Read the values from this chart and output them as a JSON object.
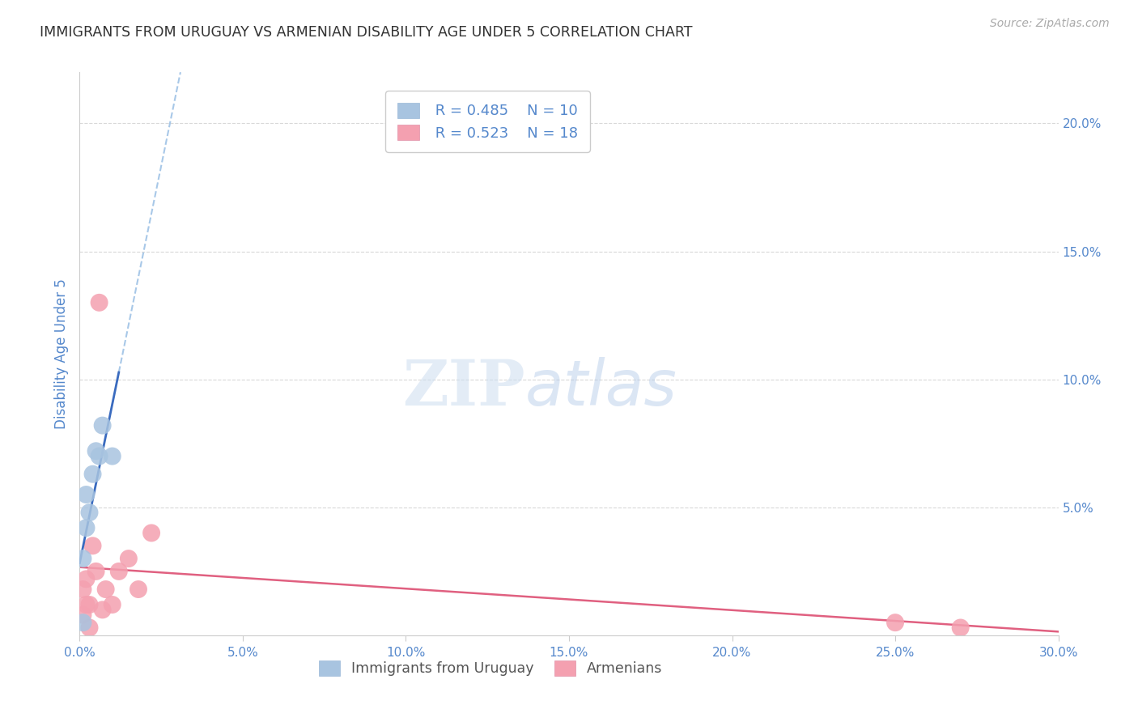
{
  "title": "IMMIGRANTS FROM URUGUAY VS ARMENIAN DISABILITY AGE UNDER 5 CORRELATION CHART",
  "source": "Source: ZipAtlas.com",
  "ylabel": "Disability Age Under 5",
  "watermark_zip": "ZIP",
  "watermark_atlas": "atlas",
  "xlim": [
    0.0,
    0.3
  ],
  "ylim": [
    0.0,
    0.22
  ],
  "xticks": [
    0.0,
    0.05,
    0.1,
    0.15,
    0.2,
    0.25,
    0.3
  ],
  "xtick_labels": [
    "0.0%",
    "5.0%",
    "10.0%",
    "15.0%",
    "20.0%",
    "25.0%",
    "30.0%"
  ],
  "yticks": [
    0.0,
    0.05,
    0.1,
    0.15,
    0.2
  ],
  "ytick_labels": [
    "",
    "5.0%",
    "10.0%",
    "15.0%",
    "20.0%"
  ],
  "uruguay_color": "#a8c4e0",
  "armenian_color": "#f4a0b0",
  "uruguay_line_color": "#3a6bbf",
  "uruguay_dash_color": "#a8c8e8",
  "armenian_line_color": "#e06080",
  "legend_R1": "R = 0.485",
  "legend_N1": "N = 10",
  "legend_R2": "R = 0.523",
  "legend_N2": "N = 18",
  "uruguay_x": [
    0.001,
    0.001,
    0.002,
    0.002,
    0.003,
    0.004,
    0.005,
    0.006,
    0.007,
    0.01
  ],
  "uruguay_y": [
    0.005,
    0.03,
    0.042,
    0.055,
    0.048,
    0.063,
    0.072,
    0.07,
    0.082,
    0.07
  ],
  "armenian_x": [
    0.001,
    0.001,
    0.002,
    0.002,
    0.003,
    0.003,
    0.004,
    0.005,
    0.006,
    0.007,
    0.008,
    0.01,
    0.012,
    0.015,
    0.018,
    0.022,
    0.25,
    0.27
  ],
  "armenian_y": [
    0.008,
    0.018,
    0.012,
    0.022,
    0.003,
    0.012,
    0.035,
    0.025,
    0.13,
    0.01,
    0.018,
    0.012,
    0.025,
    0.03,
    0.018,
    0.04,
    0.005,
    0.003
  ],
  "background_color": "#ffffff",
  "grid_color": "#d8d8d8",
  "title_color": "#333333",
  "tick_label_color": "#5588cc"
}
